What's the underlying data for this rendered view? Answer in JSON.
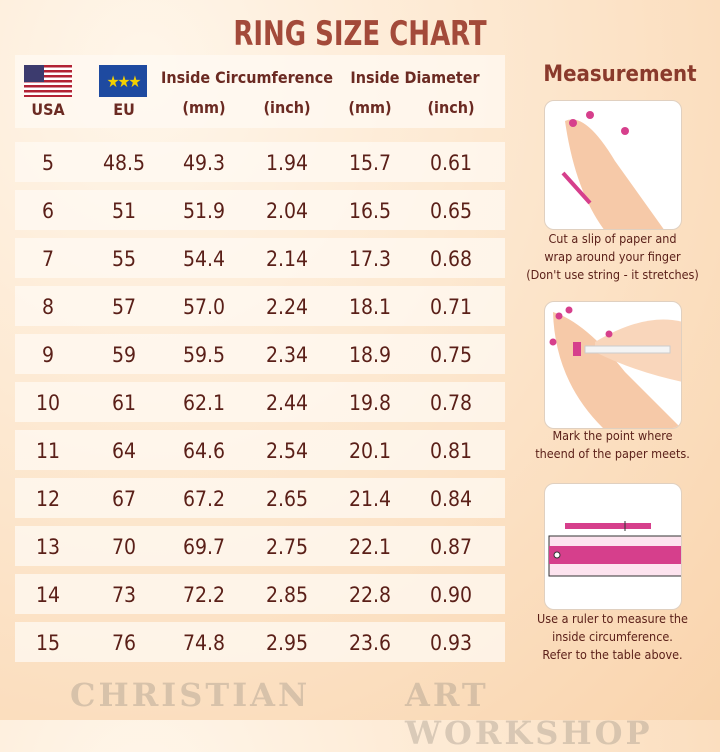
{
  "title": "RING SIZE CHART",
  "header": {
    "usa": "USA",
    "eu": "EU",
    "circumference": "Inside Circumference",
    "diameter": "Inside Diameter",
    "mm": "(mm)",
    "inch": "(inch)"
  },
  "rows": [
    [
      "5",
      "48.5",
      "49.3",
      "1.94",
      "15.7",
      "0.61"
    ],
    [
      "6",
      "51",
      "51.9",
      "2.04",
      "16.5",
      "0.65"
    ],
    [
      "7",
      "55",
      "54.4",
      "2.14",
      "17.3",
      "0.68"
    ],
    [
      "8",
      "57",
      "57.0",
      "2.24",
      "18.1",
      "0.71"
    ],
    [
      "9",
      "59",
      "59.5",
      "2.34",
      "18.9",
      "0.75"
    ],
    [
      "10",
      "61",
      "62.1",
      "2.44",
      "19.8",
      "0.78"
    ],
    [
      "11",
      "64",
      "64.6",
      "2.54",
      "20.1",
      "0.81"
    ],
    [
      "12",
      "67",
      "67.2",
      "2.65",
      "21.4",
      "0.84"
    ],
    [
      "13",
      "70",
      "69.7",
      "2.75",
      "22.1",
      "0.87"
    ],
    [
      "14",
      "73",
      "72.2",
      "2.85",
      "22.8",
      "0.90"
    ],
    [
      "15",
      "76",
      "74.8",
      "2.95",
      "23.6",
      "0.93"
    ]
  ],
  "measurement": {
    "title": "Measurement",
    "steps": [
      {
        "lines": [
          "Cut a slip of paper and",
          "wrap around your finger",
          "(Don't use string - it stretches)"
        ]
      },
      {
        "lines": [
          "Mark the point where",
          "theend of the paper meets."
        ]
      },
      {
        "lines": [
          "Use a ruler to measure the",
          "inside circumference.",
          "Refer to the table above."
        ]
      }
    ]
  },
  "watermark": {
    "left": "CHRISTIAN",
    "right": "ART WORKSHOP"
  },
  "colors": {
    "title": "#a34a3a",
    "text": "#5a1f18",
    "accent": "#d63f8c"
  }
}
